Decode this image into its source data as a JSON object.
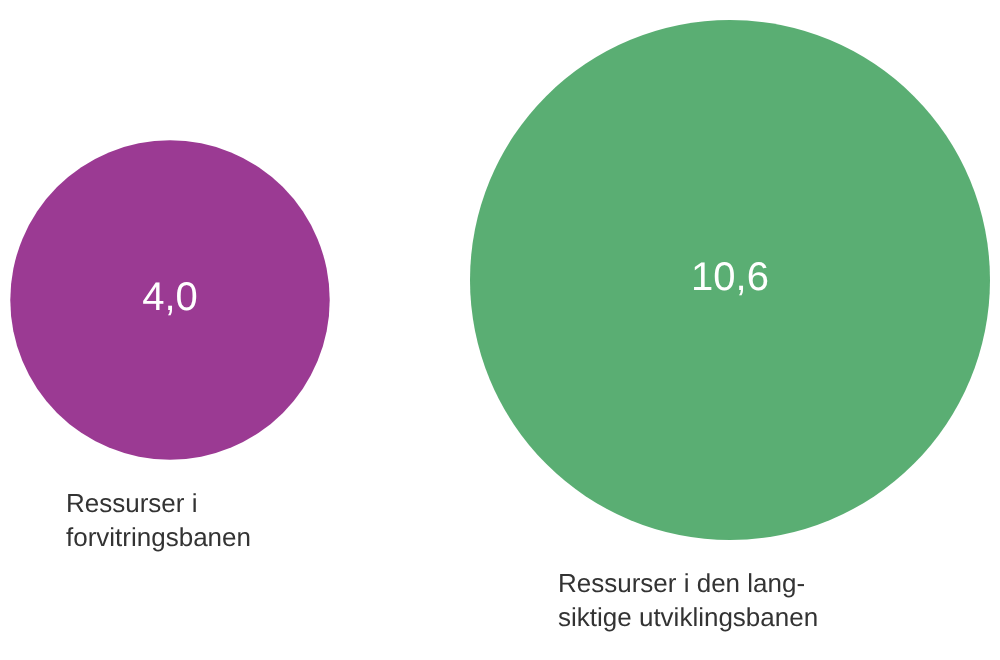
{
  "chart_data": {
    "type": "other",
    "categories": [
      "Ressurser i\nforvitringsbanen",
      "Ressurser i den lang-\nsiktige utviklingsbanen"
    ],
    "values": [
      4.0,
      10.6
    ],
    "value_labels": [
      "4,0",
      "10,6"
    ],
    "colors": [
      "#9b3a93",
      "#5aae73"
    ]
  }
}
